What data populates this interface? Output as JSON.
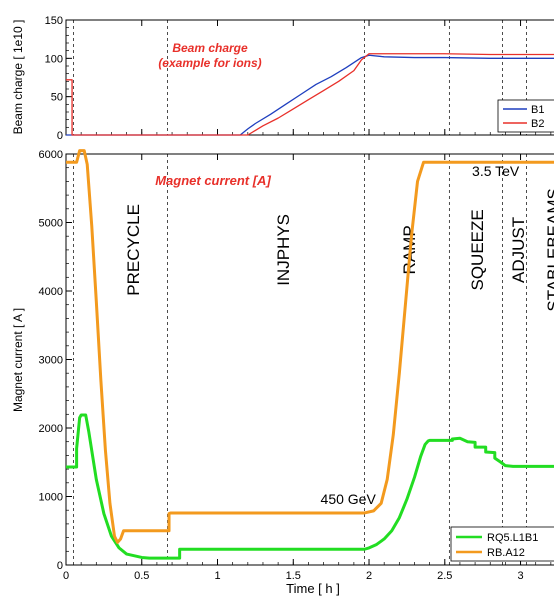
{
  "chart_data": [
    {
      "type": "line",
      "panel": "top",
      "ylabel": "Beam charge [ 1e10 ]",
      "xlabel": "",
      "xlim": [
        0,
        3.3
      ],
      "ylim": [
        0,
        150
      ],
      "yticks": [
        0,
        50,
        100,
        150
      ],
      "annotation": [
        "Beam charge",
        "(example for ions)"
      ],
      "legend_position": "lower-right",
      "series": [
        {
          "name": "B1",
          "color": "#1f3fbf",
          "x": [
            0,
            0.03,
            0.03,
            1.15,
            1.2,
            1.25,
            1.35,
            1.45,
            1.55,
            1.65,
            1.75,
            1.85,
            1.95,
            2.0,
            2.1,
            2.3,
            2.5,
            2.8,
            3.3
          ],
          "y": [
            0,
            0,
            0,
            0,
            8,
            15,
            27,
            40,
            53,
            66,
            76,
            88,
            101,
            104,
            102,
            101,
            101,
            100,
            100
          ]
        },
        {
          "name": "B2",
          "color": "#e8302a",
          "x": [
            0,
            0.04,
            0.04,
            1.2,
            1.25,
            1.3,
            1.4,
            1.5,
            1.6,
            1.7,
            1.8,
            1.9,
            1.95,
            2.0,
            2.1,
            2.3,
            2.5,
            2.8,
            3.3
          ],
          "y": [
            72,
            72,
            0,
            0,
            6,
            12,
            22,
            34,
            46,
            58,
            70,
            84,
            98,
            106,
            106,
            106,
            106,
            105,
            105
          ]
        }
      ]
    },
    {
      "type": "line",
      "panel": "bottom",
      "ylabel": "Magnet current [ A ]",
      "xlabel": "Time [ h ]",
      "xlim": [
        0,
        3.3
      ],
      "ylim": [
        0,
        6000
      ],
      "yticks": [
        0,
        1000,
        2000,
        3000,
        4000,
        5000,
        6000
      ],
      "xticks": [
        0,
        0.5,
        1,
        1.5,
        2,
        2.5,
        3
      ],
      "xtick_labels": [
        "0",
        "0.5",
        "1",
        "1.5",
        "2",
        "2.5",
        "3"
      ],
      "annotation": "Magnet current [A]",
      "phase_lines": [
        0.05,
        0.67,
        1.97,
        2.53,
        2.88,
        3.04
      ],
      "phases": [
        {
          "label": "PRECYCLE",
          "x": 0.43,
          "y": 4600
        },
        {
          "label": "INJPHYS",
          "x": 1.42,
          "y": 4600
        },
        {
          "label": "RAMP",
          "x": 2.25,
          "y": 4600
        },
        {
          "label": "SQUEEZE",
          "x": 2.7,
          "y": 4600
        },
        {
          "label": "ADJUST",
          "x": 2.97,
          "y": 4600
        },
        {
          "label": "STABLEBEAMS",
          "x": 3.2,
          "y": 4600
        }
      ],
      "value_labels": [
        {
          "text": "3.5 TeV",
          "x": 2.68,
          "y": 5680
        },
        {
          "text": "450 GeV",
          "x": 1.68,
          "y": 890
        }
      ],
      "legend_position": "lower-right",
      "series": [
        {
          "name": "RQ5.L1B1",
          "color": "#22dd22",
          "x": [
            0,
            0.07,
            0.07,
            0.09,
            0.1,
            0.13,
            0.15,
            0.2,
            0.25,
            0.3,
            0.35,
            0.4,
            0.5,
            0.55,
            0.74,
            0.75,
            0.75,
            1.97,
            2.0,
            2.05,
            2.1,
            2.15,
            2.2,
            2.25,
            2.3,
            2.34,
            2.37,
            2.39,
            2.4,
            2.55,
            2.55,
            2.6,
            2.65,
            2.7,
            2.7,
            2.77,
            2.77,
            2.83,
            2.83,
            2.87,
            2.9,
            2.95,
            3.3
          ],
          "y": [
            1430,
            1430,
            1700,
            2150,
            2190,
            2190,
            1950,
            1250,
            750,
            420,
            250,
            160,
            110,
            100,
            100,
            100,
            230,
            230,
            250,
            300,
            380,
            500,
            690,
            960,
            1280,
            1580,
            1760,
            1810,
            1820,
            1820,
            1840,
            1850,
            1800,
            1790,
            1720,
            1720,
            1650,
            1640,
            1560,
            1500,
            1450,
            1440,
            1440
          ]
        },
        {
          "name": "RB.A12",
          "color": "#f39a1e",
          "x": [
            0,
            0.07,
            0.09,
            0.12,
            0.14,
            0.17,
            0.2,
            0.23,
            0.26,
            0.29,
            0.32,
            0.34,
            0.36,
            0.38,
            0.38,
            0.68,
            0.68,
            0.69,
            1.97,
            2.03,
            2.08,
            2.12,
            2.16,
            2.2,
            2.24,
            2.28,
            2.32,
            2.36,
            2.37,
            3.3
          ],
          "y": [
            5880,
            5880,
            6050,
            6050,
            5850,
            4950,
            3850,
            2700,
            1680,
            900,
            420,
            330,
            380,
            500,
            500,
            500,
            750,
            760,
            760,
            790,
            900,
            1250,
            1900,
            2800,
            3800,
            4800,
            5600,
            5880,
            5880,
            5880
          ]
        }
      ]
    }
  ]
}
